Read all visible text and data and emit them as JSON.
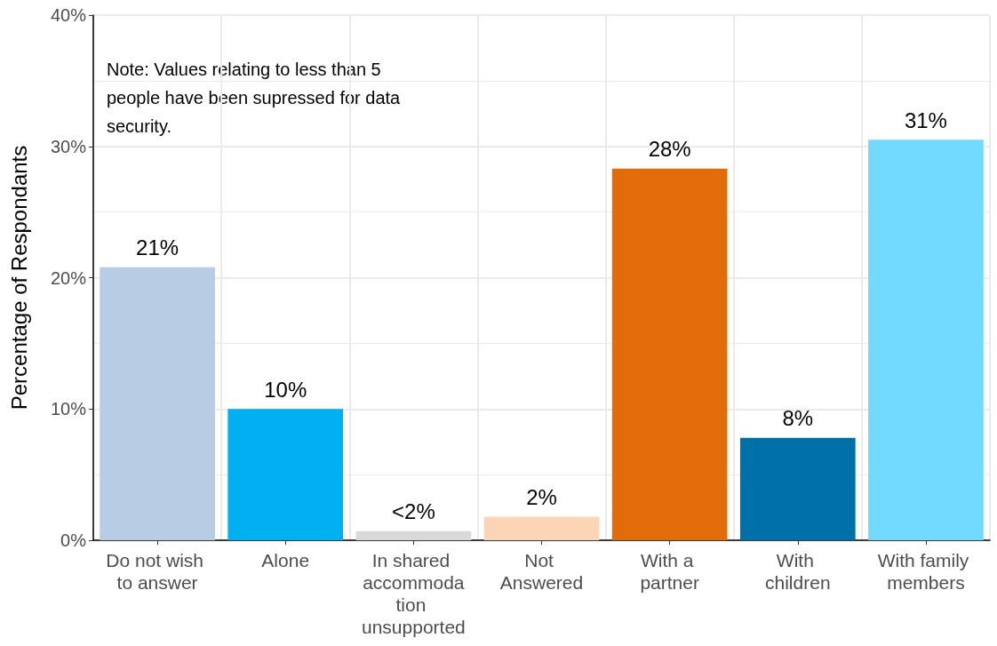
{
  "chart_data": {
    "type": "bar",
    "ylabel": "Percentage of Respondants",
    "categories": [
      "Do not wish to answer",
      "Alone",
      "In shared accommodation unsupported",
      "Not Answered",
      "With a partner",
      "With children",
      "With family members"
    ],
    "values": [
      20.8,
      10.0,
      0.7,
      1.8,
      28.3,
      7.8,
      30.5
    ],
    "colors": [
      "#b8cce4",
      "#00b0f0",
      "#d9d9d9",
      "#fbd5b5",
      "#e36c0a",
      "#0070a8",
      "#73daff"
    ],
    "value_labels": [
      "21%",
      "10%",
      "<2%",
      "2%",
      "28%",
      "8%",
      "31%"
    ],
    "ylim": [
      0,
      40
    ],
    "yticks": [
      {
        "value": 0,
        "label": "0%"
      },
      {
        "value": 10,
        "label": "10%"
      },
      {
        "value": 20,
        "label": "20%"
      },
      {
        "value": 30,
        "label": "30%"
      },
      {
        "value": 40,
        "label": "40%"
      }
    ],
    "grid": true,
    "annotations": [
      "Note: Values relating to less than 5 people have been supressed for data security."
    ]
  }
}
